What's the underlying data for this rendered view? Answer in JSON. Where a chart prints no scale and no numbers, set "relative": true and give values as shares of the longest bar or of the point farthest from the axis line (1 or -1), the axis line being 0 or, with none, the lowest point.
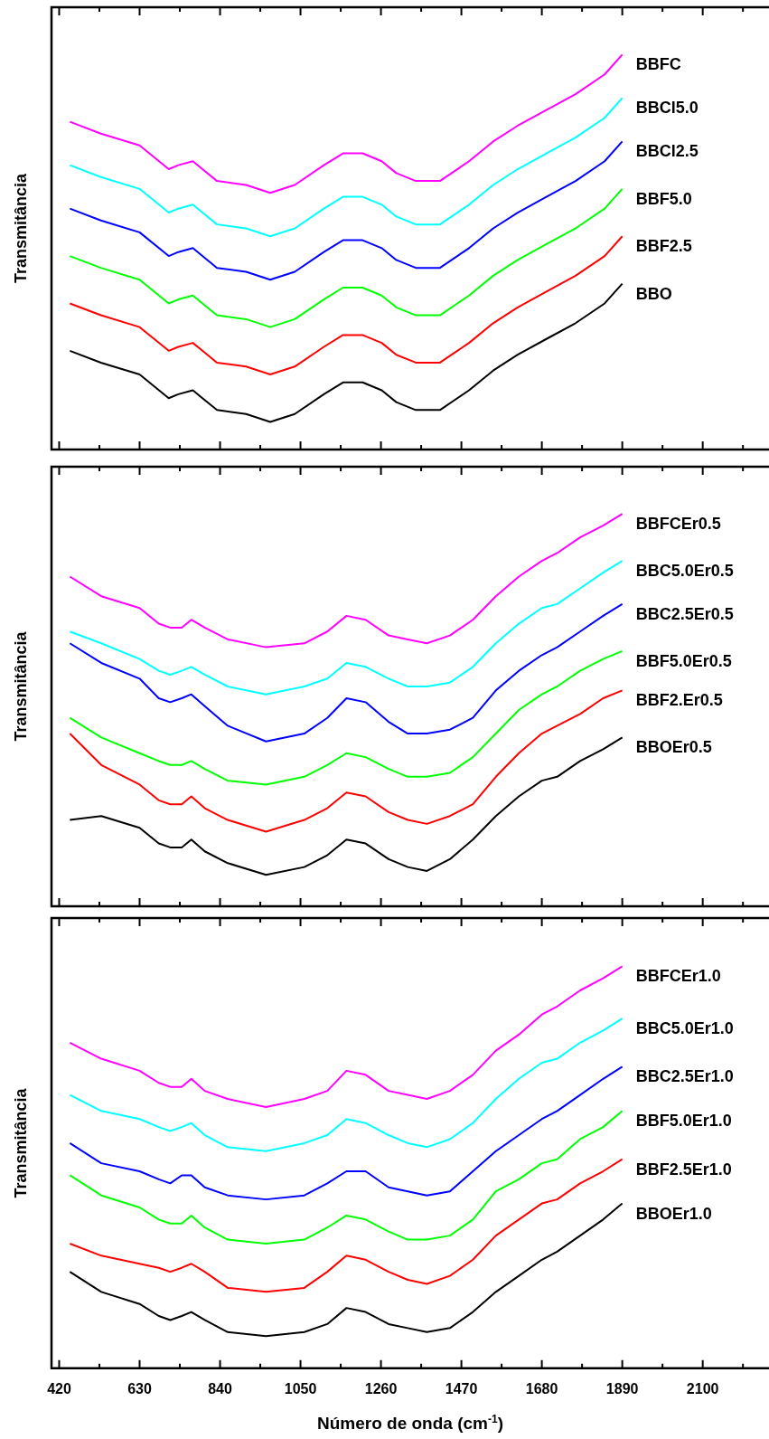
{
  "chart_data": [
    {
      "type": "line",
      "relative": true,
      "ylabel": "Transmitância",
      "tick_labels": false,
      "legend": false,
      "xlim": [
        400,
        2273
      ],
      "xticks": [
        420,
        {
          "value": 525,
          "label": null
        },
        630,
        {
          "value": 735,
          "label": null
        },
        840,
        {
          "value": 945,
          "label": null
        },
        1050,
        {
          "value": 1155,
          "label": null
        },
        1260,
        {
          "value": 1365,
          "label": null
        },
        1470,
        {
          "value": 1575,
          "label": null
        },
        1680,
        {
          "value": 1785,
          "label": null
        },
        1890,
        {
          "value": 1995,
          "label": null
        },
        2100,
        {
          "value": 2205,
          "label": null
        }
      ],
      "x": [
        448,
        529,
        630,
        706,
        731,
        769,
        794,
        832,
        908,
        971,
        1035,
        1111,
        1161,
        1212,
        1262,
        1300,
        1351,
        1414,
        1490,
        1553,
        1617,
        1692,
        1768,
        1844,
        1890
      ],
      "series": [
        {
          "name": "BBO",
          "color": "#000000",
          "values": [
            0.25,
            0.22,
            0.19,
            0.13,
            0.14,
            0.15,
            0.13,
            0.1,
            0.09,
            0.07,
            0.09,
            0.14,
            0.17,
            0.17,
            0.15,
            0.12,
            0.1,
            0.1,
            0.15,
            0.2,
            0.24,
            0.28,
            0.32,
            0.37,
            0.42
          ]
        },
        {
          "name": "BBF2.5",
          "color": "#ff0000",
          "values": [
            0.37,
            0.34,
            0.31,
            0.25,
            0.26,
            0.27,
            0.25,
            0.22,
            0.21,
            0.19,
            0.21,
            0.26,
            0.29,
            0.29,
            0.27,
            0.24,
            0.22,
            0.22,
            0.27,
            0.32,
            0.36,
            0.4,
            0.44,
            0.49,
            0.54
          ]
        },
        {
          "name": "BBF5.0",
          "color": "#00ff00",
          "values": [
            0.49,
            0.46,
            0.43,
            0.37,
            0.38,
            0.39,
            0.37,
            0.34,
            0.33,
            0.31,
            0.33,
            0.38,
            0.41,
            0.41,
            0.39,
            0.36,
            0.34,
            0.34,
            0.39,
            0.44,
            0.48,
            0.52,
            0.56,
            0.61,
            0.66
          ]
        },
        {
          "name": "BBCl2.5",
          "color": "#0000ff",
          "values": [
            0.61,
            0.58,
            0.55,
            0.49,
            0.5,
            0.51,
            0.49,
            0.46,
            0.45,
            0.43,
            0.45,
            0.5,
            0.53,
            0.53,
            0.51,
            0.48,
            0.46,
            0.46,
            0.51,
            0.56,
            0.6,
            0.64,
            0.68,
            0.73,
            0.78
          ]
        },
        {
          "name": "BBCl5.0",
          "color": "#00ffff",
          "values": [
            0.72,
            0.69,
            0.66,
            0.6,
            0.61,
            0.62,
            0.6,
            0.57,
            0.56,
            0.54,
            0.56,
            0.61,
            0.64,
            0.64,
            0.62,
            0.59,
            0.57,
            0.57,
            0.62,
            0.67,
            0.71,
            0.75,
            0.79,
            0.84,
            0.89
          ]
        },
        {
          "name": "BBFC",
          "color": "#ff00ff",
          "values": [
            0.83,
            0.8,
            0.77,
            0.71,
            0.72,
            0.73,
            0.71,
            0.68,
            0.67,
            0.65,
            0.67,
            0.72,
            0.75,
            0.75,
            0.73,
            0.7,
            0.68,
            0.68,
            0.73,
            0.78,
            0.82,
            0.86,
            0.9,
            0.95,
            1.0
          ]
        }
      ]
    },
    {
      "type": "line",
      "relative": true,
      "ylabel": "Transmitância",
      "tick_labels": false,
      "legend": false,
      "xlim": [
        400,
        2273
      ],
      "xticks": [
        420,
        {
          "value": 525,
          "label": null
        },
        630,
        {
          "value": 735,
          "label": null
        },
        840,
        {
          "value": 945,
          "label": null
        },
        1050,
        {
          "value": 1155,
          "label": null
        },
        1260,
        {
          "value": 1365,
          "label": null
        },
        1470,
        {
          "value": 1575,
          "label": null
        },
        1680,
        {
          "value": 1785,
          "label": null
        },
        1890,
        {
          "value": 1995,
          "label": null
        },
        2100,
        {
          "value": 2205,
          "label": null
        }
      ],
      "x": [
        448,
        530,
        630,
        680,
        710,
        740,
        765,
        800,
        860,
        960,
        1060,
        1120,
        1170,
        1220,
        1280,
        1330,
        1380,
        1440,
        1500,
        1560,
        1620,
        1680,
        1720,
        1780,
        1840,
        1890
      ],
      "series": [
        {
          "name": "BBOEr0.5",
          "color": "#000000",
          "values": [
            0.22,
            0.23,
            0.2,
            0.16,
            0.15,
            0.15,
            0.17,
            0.14,
            0.11,
            0.08,
            0.1,
            0.13,
            0.17,
            0.16,
            0.12,
            0.1,
            0.09,
            0.12,
            0.17,
            0.23,
            0.28,
            0.32,
            0.33,
            0.37,
            0.4,
            0.43
          ]
        },
        {
          "name": "BBF2.Er0.5",
          "color": "#ff0000",
          "values": [
            0.44,
            0.36,
            0.31,
            0.27,
            0.26,
            0.26,
            0.28,
            0.25,
            0.22,
            0.19,
            0.22,
            0.25,
            0.29,
            0.28,
            0.24,
            0.22,
            0.21,
            0.23,
            0.26,
            0.33,
            0.39,
            0.44,
            0.46,
            0.49,
            0.53,
            0.55
          ]
        },
        {
          "name": "BBF5.0Er0.5",
          "color": "#00ff00",
          "values": [
            0.48,
            0.43,
            0.39,
            0.37,
            0.36,
            0.36,
            0.37,
            0.35,
            0.32,
            0.31,
            0.33,
            0.36,
            0.39,
            0.38,
            0.35,
            0.33,
            0.33,
            0.34,
            0.38,
            0.44,
            0.5,
            0.54,
            0.56,
            0.6,
            0.63,
            0.65
          ]
        },
        {
          "name": "BBC2.5Er0.5",
          "color": "#0000ff",
          "values": [
            0.67,
            0.62,
            0.58,
            0.53,
            0.52,
            0.53,
            0.54,
            0.51,
            0.46,
            0.42,
            0.44,
            0.48,
            0.53,
            0.52,
            0.47,
            0.44,
            0.44,
            0.45,
            0.48,
            0.55,
            0.6,
            0.64,
            0.66,
            0.7,
            0.74,
            0.77
          ]
        },
        {
          "name": "BBC5.0Er0.5",
          "color": "#00ffff",
          "values": [
            0.7,
            0.67,
            0.63,
            0.6,
            0.59,
            0.6,
            0.61,
            0.59,
            0.56,
            0.54,
            0.56,
            0.58,
            0.62,
            0.61,
            0.58,
            0.56,
            0.56,
            0.57,
            0.61,
            0.67,
            0.72,
            0.76,
            0.77,
            0.81,
            0.85,
            0.88
          ]
        },
        {
          "name": "BBFCEr0.5",
          "color": "#ff00ff",
          "values": [
            0.84,
            0.79,
            0.76,
            0.72,
            0.71,
            0.71,
            0.73,
            0.71,
            0.68,
            0.66,
            0.67,
            0.7,
            0.74,
            0.73,
            0.69,
            0.68,
            0.67,
            0.69,
            0.73,
            0.79,
            0.84,
            0.88,
            0.9,
            0.94,
            0.97,
            1.0
          ]
        }
      ]
    },
    {
      "type": "line",
      "relative": true,
      "ylabel": "Transmitância",
      "xlabel": "Número de onda (cm$^{-1}$)",
      "tick_labels": "x",
      "legend": false,
      "xlim": [
        400,
        2273
      ],
      "xticks": [
        420,
        {
          "value": 525,
          "label": null
        },
        630,
        {
          "value": 735,
          "label": null
        },
        840,
        {
          "value": 945,
          "label": null
        },
        1050,
        {
          "value": 1155,
          "label": null
        },
        1260,
        {
          "value": 1365,
          "label": null
        },
        1470,
        {
          "value": 1575,
          "label": null
        },
        1680,
        {
          "value": 1785,
          "label": null
        },
        1890,
        {
          "value": 1995,
          "label": null
        },
        2100,
        {
          "value": 2205,
          "label": null
        }
      ],
      "x": [
        448,
        530,
        630,
        680,
        710,
        740,
        765,
        800,
        860,
        960,
        1060,
        1120,
        1170,
        1220,
        1280,
        1330,
        1380,
        1440,
        1500,
        1560,
        1620,
        1680,
        1720,
        1780,
        1840,
        1890
      ],
      "series": [
        {
          "name": "BBOEr1.0",
          "color": "#000000",
          "values": [
            0.24,
            0.19,
            0.16,
            0.13,
            0.12,
            0.13,
            0.14,
            0.12,
            0.09,
            0.08,
            0.09,
            0.11,
            0.15,
            0.14,
            0.11,
            0.1,
            0.09,
            0.1,
            0.14,
            0.19,
            0.23,
            0.27,
            0.29,
            0.33,
            0.37,
            0.41
          ]
        },
        {
          "name": "BBF2.5Er1.0",
          "color": "#ff0000",
          "values": [
            0.31,
            0.28,
            0.26,
            0.25,
            0.24,
            0.25,
            0.26,
            0.24,
            0.2,
            0.19,
            0.2,
            0.24,
            0.28,
            0.27,
            0.24,
            0.22,
            0.21,
            0.23,
            0.27,
            0.33,
            0.37,
            0.41,
            0.42,
            0.46,
            0.49,
            0.52
          ]
        },
        {
          "name": "BBF5.0Er1.0",
          "color": "#00ff00",
          "values": [
            0.48,
            0.43,
            0.4,
            0.37,
            0.36,
            0.36,
            0.38,
            0.35,
            0.32,
            0.31,
            0.32,
            0.35,
            0.38,
            0.37,
            0.34,
            0.32,
            0.32,
            0.33,
            0.37,
            0.44,
            0.47,
            0.51,
            0.52,
            0.57,
            0.6,
            0.64
          ]
        },
        {
          "name": "BBC2.5Er1.0",
          "color": "#0000ff",
          "values": [
            0.56,
            0.51,
            0.49,
            0.47,
            0.46,
            0.48,
            0.48,
            0.45,
            0.43,
            0.42,
            0.43,
            0.46,
            0.49,
            0.49,
            0.45,
            0.44,
            0.43,
            0.44,
            0.49,
            0.54,
            0.58,
            0.62,
            0.64,
            0.68,
            0.72,
            0.75
          ]
        },
        {
          "name": "BBC5.0Er1.0",
          "color": "#00ffff",
          "values": [
            0.68,
            0.64,
            0.62,
            0.6,
            0.59,
            0.6,
            0.61,
            0.58,
            0.55,
            0.54,
            0.56,
            0.58,
            0.62,
            0.61,
            0.58,
            0.56,
            0.55,
            0.57,
            0.61,
            0.67,
            0.72,
            0.76,
            0.77,
            0.81,
            0.84,
            0.87
          ]
        },
        {
          "name": "BBFCEr1.0",
          "color": "#ff00ff",
          "values": [
            0.81,
            0.77,
            0.74,
            0.71,
            0.7,
            0.7,
            0.72,
            0.69,
            0.67,
            0.65,
            0.67,
            0.69,
            0.74,
            0.73,
            0.69,
            0.68,
            0.67,
            0.69,
            0.73,
            0.79,
            0.83,
            0.88,
            0.9,
            0.94,
            0.97,
            1.0
          ]
        }
      ]
    }
  ]
}
